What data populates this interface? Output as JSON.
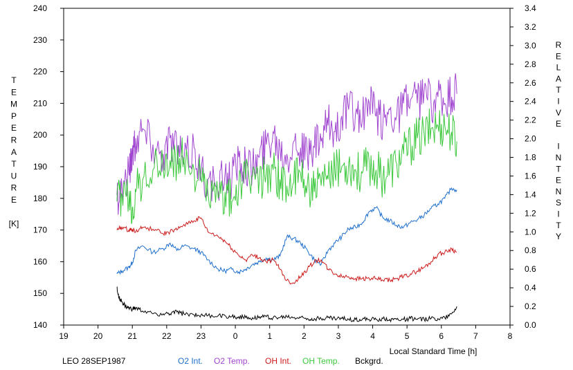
{
  "chart_data": {
    "type": "line",
    "title": "",
    "xlabel": "Local Standard Time [h]",
    "ylabel_left": [
      "T",
      "E",
      "M",
      "P",
      "E",
      "R",
      "A",
      "T",
      "U",
      "R",
      "E",
      "",
      "[K]"
    ],
    "ylabel_right": [
      "R",
      "E",
      "L",
      "A",
      "T",
      "I",
      "V",
      "E",
      "",
      "I",
      "N",
      "T",
      "E",
      "N",
      "S",
      "I",
      "T",
      "Y"
    ],
    "x_ticks": [
      "19",
      "20",
      "21",
      "22",
      "23",
      "0",
      "1",
      "2",
      "3",
      "4",
      "5",
      "6",
      "7",
      "8"
    ],
    "xlim": [
      19,
      32
    ],
    "y_left_ticks": [
      "140",
      "150",
      "160",
      "170",
      "180",
      "190",
      "200",
      "210",
      "220",
      "230",
      "240"
    ],
    "ylim_left": [
      140,
      240
    ],
    "y_right_ticks": [
      "0.0",
      "0.2",
      "0.4",
      "0.6",
      "0.8",
      "1.0",
      "1.2",
      "1.4",
      "1.6",
      "1.8",
      "2.0",
      "2.2",
      "2.4",
      "2.6",
      "2.8",
      "3.0",
      "3.2",
      "3.4"
    ],
    "ylim_right": [
      0,
      3.4
    ],
    "caption": "LEO 28SEP1987",
    "series": [
      {
        "name": "O2 Int.",
        "color": "#1e6fcc",
        "axis": "right",
        "x": [
          20.55,
          20.7,
          20.9,
          21.0,
          21.1,
          21.3,
          21.6,
          21.9,
          22.1,
          22.3,
          22.5,
          22.8,
          23.0,
          23.2,
          23.5,
          23.7,
          23.9,
          24.1,
          24.3,
          24.5,
          24.7,
          24.9,
          25.1,
          25.3,
          25.5,
          25.7,
          25.9,
          26.1,
          26.3,
          26.5,
          26.7,
          26.9,
          27.1,
          27.3,
          27.5,
          27.7,
          27.9,
          28.1,
          28.3,
          28.5,
          28.7,
          28.9,
          29.1,
          29.3,
          29.5,
          29.7,
          29.9,
          30.1,
          30.3,
          30.45
        ],
        "y": [
          0.55,
          0.58,
          0.62,
          0.67,
          0.8,
          0.85,
          0.78,
          0.82,
          0.88,
          0.8,
          0.85,
          0.82,
          0.78,
          0.7,
          0.6,
          0.58,
          0.6,
          0.57,
          0.6,
          0.65,
          0.68,
          0.72,
          0.7,
          0.74,
          0.95,
          0.93,
          0.88,
          0.8,
          0.7,
          0.65,
          0.8,
          0.88,
          0.95,
          1.03,
          1.05,
          1.1,
          1.22,
          1.26,
          1.15,
          1.12,
          1.07,
          1.05,
          1.1,
          1.13,
          1.18,
          1.25,
          1.3,
          1.36,
          1.47,
          1.45
        ]
      },
      {
        "name": "O2 Temp.",
        "color": "#a045cf",
        "axis": "left",
        "x": [
          20.55,
          20.7,
          20.9,
          21.0,
          21.1,
          21.3,
          21.6,
          21.9,
          22.1,
          22.3,
          22.5,
          22.8,
          23.0,
          23.2,
          23.5,
          23.7,
          23.9,
          24.1,
          24.3,
          24.5,
          24.7,
          24.9,
          25.1,
          25.3,
          25.5,
          25.7,
          25.9,
          26.1,
          26.3,
          26.5,
          26.7,
          26.9,
          27.1,
          27.3,
          27.5,
          27.7,
          27.9,
          28.1,
          28.3,
          28.5,
          28.7,
          28.9,
          29.1,
          29.3,
          29.5,
          29.7,
          29.9,
          30.1,
          30.3,
          30.45
        ],
        "y": [
          181,
          184,
          188,
          195,
          199,
          202,
          197,
          194,
          199,
          196,
          191,
          196,
          188,
          186,
          182,
          188,
          186,
          193,
          191,
          189,
          193,
          197,
          201,
          196,
          194,
          198,
          196,
          193,
          196,
          198,
          203,
          201,
          206,
          208,
          207,
          205,
          210,
          206,
          204,
          208,
          206,
          210,
          211,
          210,
          214,
          210,
          212,
          210,
          212,
          213
        ]
      },
      {
        "name": "OH Int.",
        "color": "#cc1a1a",
        "axis": "right",
        "x": [
          20.55,
          20.7,
          20.9,
          21.0,
          21.1,
          21.3,
          21.6,
          21.9,
          22.1,
          22.3,
          22.5,
          22.8,
          23.0,
          23.2,
          23.5,
          23.7,
          23.9,
          24.1,
          24.3,
          24.5,
          24.7,
          24.9,
          25.1,
          25.3,
          25.5,
          25.7,
          25.9,
          26.1,
          26.3,
          26.5,
          26.7,
          26.9,
          27.1,
          27.3,
          27.5,
          27.7,
          27.9,
          28.1,
          28.3,
          28.5,
          28.7,
          28.9,
          29.1,
          29.3,
          29.5,
          29.7,
          29.9,
          30.1,
          30.3,
          30.45
        ],
        "y": [
          1.02,
          1.05,
          1.02,
          1.03,
          1.0,
          1.05,
          1.03,
          0.98,
          1.0,
          1.02,
          1.08,
          1.12,
          1.15,
          1.0,
          0.95,
          0.9,
          0.82,
          0.75,
          0.7,
          0.75,
          0.72,
          0.68,
          0.7,
          0.6,
          0.48,
          0.45,
          0.52,
          0.6,
          0.68,
          0.7,
          0.6,
          0.55,
          0.52,
          0.52,
          0.5,
          0.5,
          0.5,
          0.5,
          0.48,
          0.48,
          0.5,
          0.52,
          0.55,
          0.58,
          0.62,
          0.68,
          0.76,
          0.78,
          0.82,
          0.78
        ]
      },
      {
        "name": "OH Temp.",
        "color": "#3cc83c",
        "axis": "left",
        "x": [
          20.55,
          20.7,
          20.9,
          21.0,
          21.1,
          21.3,
          21.6,
          21.9,
          22.1,
          22.3,
          22.5,
          22.8,
          23.0,
          23.2,
          23.5,
          23.7,
          23.9,
          24.1,
          24.3,
          24.5,
          24.7,
          24.9,
          25.1,
          25.3,
          25.5,
          25.7,
          25.9,
          26.1,
          26.3,
          26.5,
          26.7,
          26.9,
          27.1,
          27.3,
          27.5,
          27.7,
          27.9,
          28.1,
          28.3,
          28.5,
          28.7,
          28.9,
          29.1,
          29.3,
          29.5,
          29.7,
          29.9,
          30.1,
          30.3,
          30.45
        ],
        "y": [
          179,
          181,
          179,
          177,
          182,
          186,
          189,
          190,
          192,
          191,
          193,
          189,
          186,
          182,
          180,
          182,
          179,
          184,
          186,
          187,
          186,
          188,
          189,
          186,
          184,
          185,
          188,
          185,
          182,
          184,
          186,
          188,
          190,
          191,
          189,
          188,
          191,
          189,
          187,
          189,
          191,
          194,
          197,
          199,
          200,
          202,
          203,
          203,
          201,
          198
        ]
      },
      {
        "name": "Bckgrd.",
        "color": "#000000",
        "axis": "right",
        "x": [
          20.55,
          20.6,
          20.7,
          20.8,
          20.9,
          21.0,
          21.1,
          21.3,
          21.6,
          21.9,
          22.1,
          22.3,
          22.5,
          22.8,
          23.0,
          23.2,
          23.5,
          23.7,
          23.9,
          24.1,
          24.3,
          24.5,
          24.7,
          24.9,
          25.1,
          25.3,
          25.5,
          25.7,
          25.9,
          26.1,
          26.3,
          26.5,
          26.7,
          26.9,
          27.1,
          27.3,
          27.5,
          27.7,
          27.9,
          28.1,
          28.3,
          28.5,
          28.7,
          28.9,
          29.1,
          29.3,
          29.5,
          29.7,
          29.9,
          30.1,
          30.3,
          30.45
        ],
        "y": [
          0.4,
          0.3,
          0.25,
          0.2,
          0.18,
          0.17,
          0.18,
          0.15,
          0.12,
          0.12,
          0.12,
          0.14,
          0.12,
          0.11,
          0.11,
          0.1,
          0.1,
          0.1,
          0.09,
          0.09,
          0.08,
          0.08,
          0.09,
          0.09,
          0.08,
          0.08,
          0.09,
          0.08,
          0.08,
          0.07,
          0.07,
          0.07,
          0.08,
          0.07,
          0.07,
          0.06,
          0.06,
          0.06,
          0.06,
          0.06,
          0.07,
          0.06,
          0.06,
          0.06,
          0.07,
          0.06,
          0.06,
          0.07,
          0.07,
          0.08,
          0.12,
          0.2
        ]
      }
    ]
  }
}
